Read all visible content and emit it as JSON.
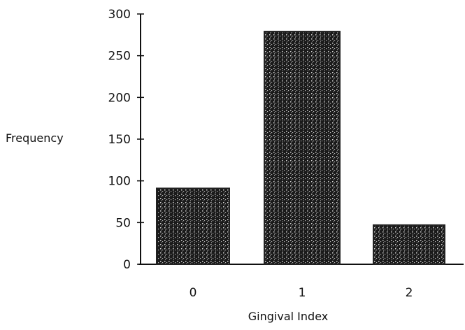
{
  "chart_data": {
    "type": "bar",
    "title": "",
    "xlabel": "Gingival Index",
    "ylabel": "Frequency",
    "categories": [
      "0",
      "1",
      "2"
    ],
    "values": [
      91,
      279,
      47
    ],
    "ylim": [
      0,
      300
    ],
    "yticks": [
      "0",
      "50",
      "100",
      "150",
      "200",
      "250",
      "300"
    ],
    "grid": false,
    "legend": "none",
    "bar_color": "#222222"
  }
}
